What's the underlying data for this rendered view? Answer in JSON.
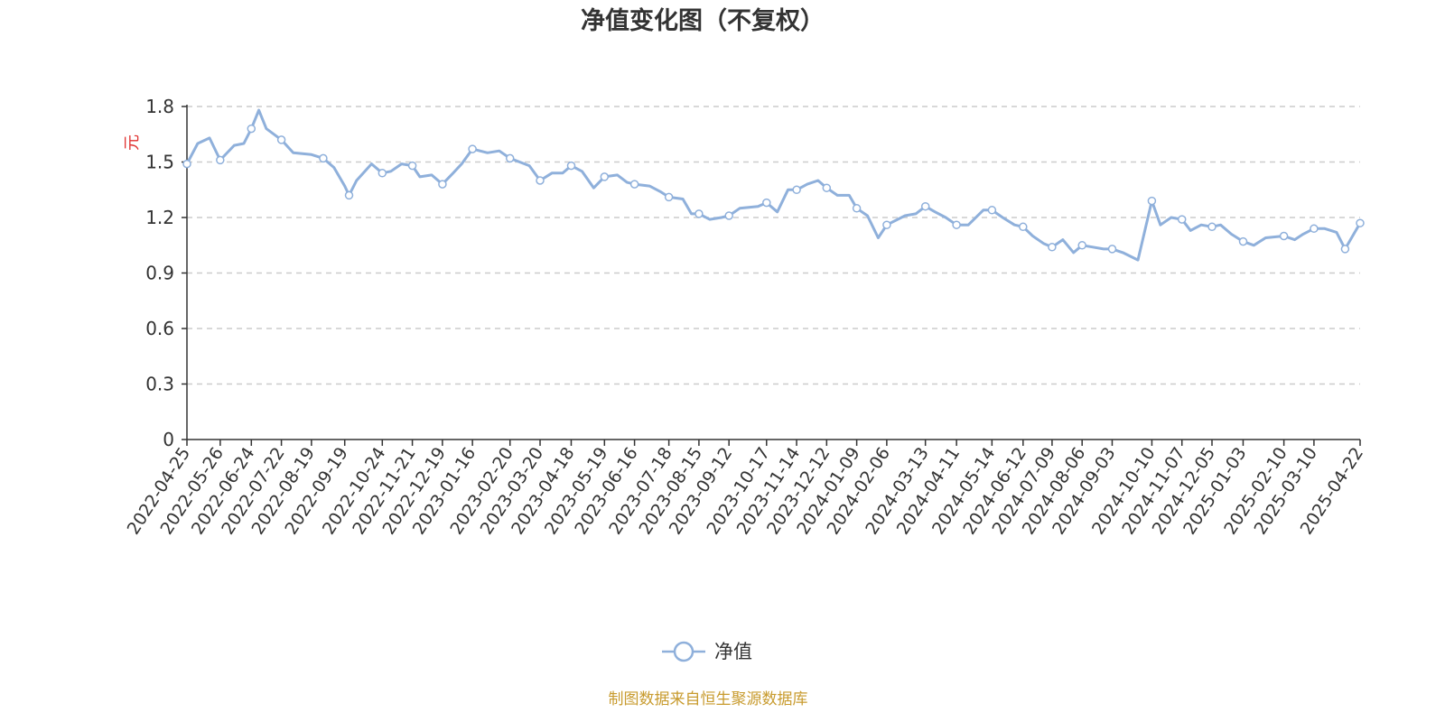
{
  "chart_data": {
    "type": "line",
    "title": "净值变化图（不复权）",
    "ylabel": "元",
    "xlabel": "",
    "ylim": [
      0,
      1.8
    ],
    "yticks": [
      "0",
      "0.3",
      "0.6",
      "0.9",
      "1.2",
      "1.5",
      "1.8"
    ],
    "grid": true,
    "legend_position": "bottom-center",
    "x_tick_labels": [
      "2022-04-25",
      "2022-05-26",
      "2022-06-24",
      "2022-07-22",
      "2022-08-19",
      "2022-09-19",
      "2022-10-24",
      "2022-11-21",
      "2022-12-19",
      "2023-01-16",
      "2023-02-20",
      "2023-03-20",
      "2023-04-18",
      "2023-05-19",
      "2023-06-16",
      "2023-07-18",
      "2023-08-15",
      "2023-09-12",
      "2023-10-17",
      "2023-11-14",
      "2023-12-12",
      "2024-01-09",
      "2024-02-06",
      "2024-03-13",
      "2024-04-11",
      "2024-05-14",
      "2024-06-12",
      "2024-07-09",
      "2024-08-06",
      "2024-09-03",
      "2024-10-10",
      "2024-11-07",
      "2024-12-05",
      "2025-01-03",
      "2025-02-10",
      "2025-03-10",
      "2025-04-22"
    ],
    "series": [
      {
        "name": "净值",
        "color": "#8fb0db",
        "x": [
          "2022-04-25",
          "2022-05-05",
          "2022-05-16",
          "2022-05-26",
          "2022-06-08",
          "2022-06-17",
          "2022-06-24",
          "2022-07-01",
          "2022-07-08",
          "2022-07-22",
          "2022-08-02",
          "2022-08-19",
          "2022-08-30",
          "2022-09-09",
          "2022-09-19",
          "2022-09-23",
          "2022-09-30",
          "2022-10-14",
          "2022-10-24",
          "2022-11-01",
          "2022-11-11",
          "2022-11-21",
          "2022-11-28",
          "2022-12-09",
          "2022-12-19",
          "2022-12-29",
          "2023-01-06",
          "2023-01-16",
          "2023-01-30",
          "2023-02-10",
          "2023-02-20",
          "2023-03-01",
          "2023-03-10",
          "2023-03-20",
          "2023-03-31",
          "2023-04-10",
          "2023-04-18",
          "2023-04-28",
          "2023-05-09",
          "2023-05-19",
          "2023-05-31",
          "2023-06-09",
          "2023-06-16",
          "2023-06-30",
          "2023-07-10",
          "2023-07-18",
          "2023-07-31",
          "2023-08-08",
          "2023-08-15",
          "2023-08-25",
          "2023-09-05",
          "2023-09-12",
          "2023-09-22",
          "2023-10-09",
          "2023-10-17",
          "2023-10-27",
          "2023-11-06",
          "2023-11-14",
          "2023-11-24",
          "2023-12-04",
          "2023-12-12",
          "2023-12-22",
          "2024-01-02",
          "2024-01-09",
          "2024-01-19",
          "2024-01-29",
          "2024-02-06",
          "2024-02-23",
          "2024-03-04",
          "2024-03-13",
          "2024-03-22",
          "2024-04-01",
          "2024-04-11",
          "2024-04-22",
          "2024-05-06",
          "2024-05-14",
          "2024-05-24",
          "2024-06-04",
          "2024-06-12",
          "2024-06-21",
          "2024-07-01",
          "2024-07-09",
          "2024-07-19",
          "2024-07-29",
          "2024-08-06",
          "2024-08-16",
          "2024-08-26",
          "2024-09-03",
          "2024-09-13",
          "2024-09-27",
          "2024-10-10",
          "2024-10-18",
          "2024-10-28",
          "2024-11-07",
          "2024-11-15",
          "2024-11-25",
          "2024-12-05",
          "2024-12-13",
          "2024-12-23",
          "2025-01-03",
          "2025-01-13",
          "2025-01-24",
          "2025-02-10",
          "2025-02-20",
          "2025-02-28",
          "2025-03-10",
          "2025-03-20",
          "2025-03-31",
          "2025-04-08",
          "2025-04-15",
          "2025-04-22"
        ],
        "values": [
          1.49,
          1.6,
          1.63,
          1.51,
          1.59,
          1.6,
          1.68,
          1.78,
          1.68,
          1.62,
          1.55,
          1.54,
          1.52,
          1.47,
          1.37,
          1.32,
          1.4,
          1.49,
          1.44,
          1.45,
          1.49,
          1.48,
          1.42,
          1.43,
          1.38,
          1.44,
          1.49,
          1.57,
          1.55,
          1.56,
          1.52,
          1.5,
          1.48,
          1.4,
          1.44,
          1.44,
          1.48,
          1.45,
          1.36,
          1.42,
          1.43,
          1.39,
          1.38,
          1.37,
          1.34,
          1.31,
          1.3,
          1.22,
          1.22,
          1.19,
          1.2,
          1.21,
          1.25,
          1.26,
          1.28,
          1.23,
          1.35,
          1.35,
          1.38,
          1.4,
          1.36,
          1.32,
          1.32,
          1.25,
          1.21,
          1.09,
          1.16,
          1.21,
          1.22,
          1.26,
          1.23,
          1.2,
          1.16,
          1.16,
          1.24,
          1.24,
          1.2,
          1.16,
          1.15,
          1.1,
          1.06,
          1.04,
          1.08,
          1.01,
          1.05,
          1.04,
          1.03,
          1.03,
          1.01,
          0.97,
          1.29,
          1.16,
          1.2,
          1.19,
          1.13,
          1.16,
          1.15,
          1.16,
          1.11,
          1.07,
          1.05,
          1.09,
          1.1,
          1.08,
          1.11,
          1.14,
          1.14,
          1.12,
          1.03,
          1.1,
          1.17
        ]
      }
    ]
  },
  "footer": {
    "source": "制图数据来自恒生聚源数据库"
  }
}
